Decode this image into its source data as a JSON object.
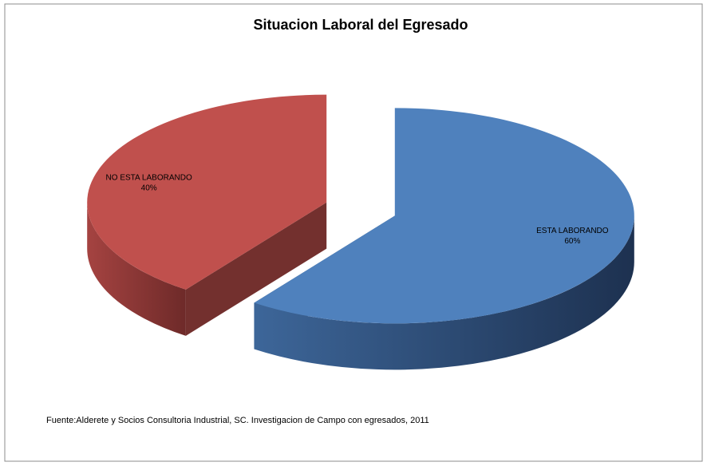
{
  "chart_data": {
    "type": "pie3d",
    "title": "Situacion Laboral del Egresado",
    "categories": [
      "ESTA LABORANDO",
      "NO ESTA LABORANDO"
    ],
    "values": [
      60,
      40
    ],
    "value_labels": [
      "60%",
      "40%"
    ],
    "colors": [
      "#4f81bd",
      "#c0504d"
    ],
    "note": "Fuente:Alderete y Socios Consultoria Industrial, SC. Investigacion de Campo  con egresados, 2011"
  }
}
